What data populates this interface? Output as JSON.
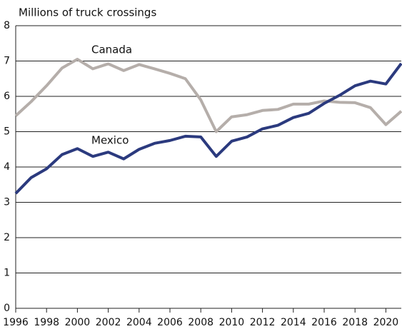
{
  "chart_data": {
    "type": "line",
    "title": "Millions of truck crossings",
    "x": [
      1996,
      1997,
      1998,
      1999,
      2000,
      2001,
      2002,
      2003,
      2004,
      2005,
      2006,
      2007,
      2008,
      2009,
      2010,
      2011,
      2012,
      2013,
      2014,
      2015,
      2016,
      2017,
      2018,
      2019,
      2020,
      2021
    ],
    "series": [
      {
        "name": "Canada",
        "color": "#b5aeaa",
        "values": [
          5.45,
          5.85,
          6.3,
          6.8,
          7.05,
          6.78,
          6.92,
          6.73,
          6.9,
          6.78,
          6.65,
          6.5,
          5.9,
          5.0,
          5.42,
          5.48,
          5.6,
          5.63,
          5.78,
          5.78,
          5.87,
          5.83,
          5.82,
          5.68,
          5.2,
          5.58
        ]
      },
      {
        "name": "Mexico",
        "color": "#2b3a7e",
        "values": [
          3.25,
          3.7,
          3.95,
          4.35,
          4.52,
          4.3,
          4.42,
          4.23,
          4.5,
          4.67,
          4.75,
          4.87,
          4.85,
          4.3,
          4.73,
          4.85,
          5.08,
          5.18,
          5.4,
          5.52,
          5.8,
          6.03,
          6.3,
          6.43,
          6.35,
          6.93
        ]
      }
    ],
    "xlim": [
      1996,
      2021
    ],
    "xticks": [
      1996,
      1998,
      2000,
      2002,
      2004,
      2006,
      2008,
      2010,
      2012,
      2014,
      2016,
      2018,
      2020
    ],
    "ylim": [
      0,
      8
    ],
    "yticks": [
      0,
      1,
      2,
      3,
      4,
      5,
      6,
      7,
      8
    ],
    "grid": true
  }
}
